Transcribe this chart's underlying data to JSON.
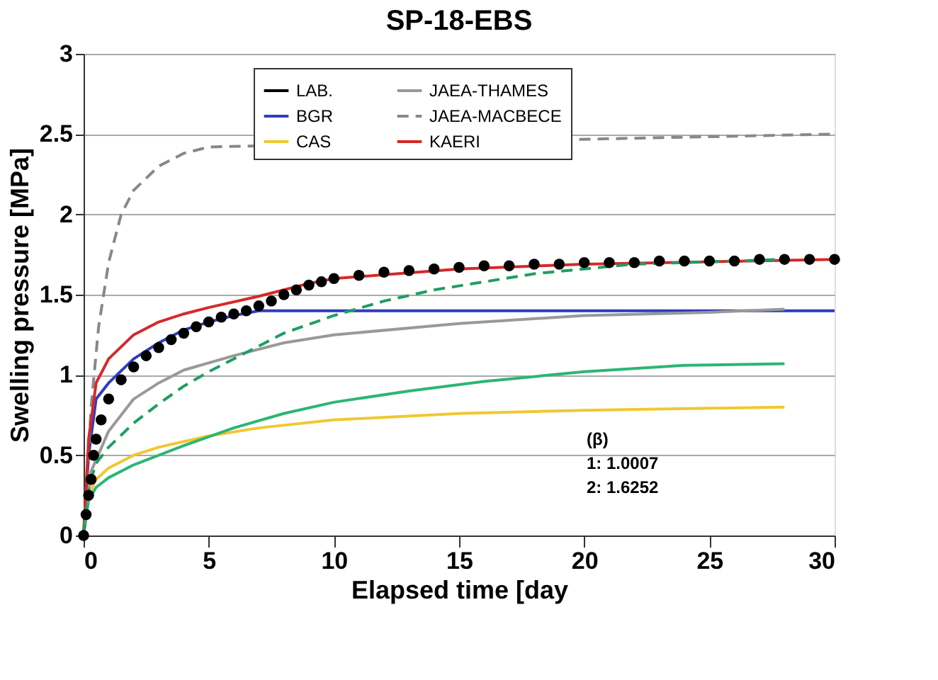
{
  "chart_data": {
    "type": "line",
    "title": "SP-18-EBS",
    "xlabel": "Elapsed time [day",
    "ylabel": "Swelling pressure [MPa]",
    "xlim": [
      0,
      30
    ],
    "xticks": [
      0,
      5,
      10,
      15,
      20,
      25,
      30
    ],
    "ylim": [
      0,
      3
    ],
    "yticks": [
      0,
      0.5,
      1,
      1.5,
      2,
      2.5,
      3
    ],
    "grid": "y",
    "legend": "top",
    "annotations": [
      "(β)",
      "1: 1.0007",
      "2: 1.6252"
    ],
    "series": [
      {
        "name": "LAB.",
        "type": "scatter",
        "marker": "circle",
        "color": "#000000",
        "x": [
          0,
          0.1,
          0.2,
          0.3,
          0.4,
          0.5,
          0.7,
          1,
          1.5,
          2,
          2.5,
          3,
          3.5,
          4,
          4.5,
          5,
          5.5,
          6,
          6.5,
          7,
          7.5,
          8,
          8.5,
          9,
          9.5,
          10,
          11,
          12,
          13,
          14,
          15,
          16,
          17,
          18,
          19,
          20,
          21,
          22,
          23,
          24,
          25,
          26,
          27,
          28,
          29,
          30
        ],
        "values": [
          0,
          0.13,
          0.25,
          0.35,
          0.5,
          0.6,
          0.72,
          0.85,
          0.97,
          1.05,
          1.12,
          1.17,
          1.22,
          1.26,
          1.3,
          1.33,
          1.36,
          1.38,
          1.4,
          1.43,
          1.46,
          1.5,
          1.53,
          1.56,
          1.58,
          1.6,
          1.62,
          1.64,
          1.65,
          1.66,
          1.67,
          1.68,
          1.68,
          1.69,
          1.69,
          1.7,
          1.7,
          1.7,
          1.71,
          1.71,
          1.71,
          1.71,
          1.72,
          1.72,
          1.72,
          1.72
        ]
      },
      {
        "name": "BGR",
        "color": "#2e3dbf",
        "line_style": "solid",
        "x": [
          0,
          0.2,
          0.5,
          1,
          2,
          3,
          4,
          5,
          6,
          7,
          30
        ],
        "values": [
          0,
          0.5,
          0.85,
          0.95,
          1.1,
          1.2,
          1.28,
          1.33,
          1.37,
          1.4,
          1.4
        ]
      },
      {
        "name": "CAS",
        "color": "#f0c830",
        "line_style": "solid",
        "x": [
          0,
          0.2,
          0.5,
          1,
          2,
          3,
          5,
          7,
          10,
          15,
          20,
          28
        ],
        "values": [
          0,
          0.25,
          0.35,
          0.42,
          0.5,
          0.55,
          0.62,
          0.67,
          0.72,
          0.76,
          0.78,
          0.8
        ]
      },
      {
        "name": "JAEA-THAMES",
        "color": "#999999",
        "line_style": "solid",
        "x": [
          0,
          0.3,
          1,
          2,
          3,
          4,
          6,
          8,
          10,
          15,
          20,
          25,
          28
        ],
        "values": [
          0,
          0.4,
          0.65,
          0.85,
          0.95,
          1.03,
          1.12,
          1.2,
          1.25,
          1.32,
          1.37,
          1.39,
          1.41
        ]
      },
      {
        "name": "JAEA-MACBECE",
        "color": "#888888",
        "line_style": "dashed",
        "x": [
          0,
          0.3,
          0.6,
          1,
          1.5,
          2,
          3,
          4,
          5,
          30
        ],
        "values": [
          0,
          0.8,
          1.3,
          1.7,
          2.0,
          2.15,
          2.3,
          2.38,
          2.42,
          2.5
        ]
      },
      {
        "name": "KAERI",
        "color": "#d62828",
        "line_style": "solid",
        "x": [
          0,
          0.2,
          0.5,
          1,
          2,
          3,
          4,
          5,
          7,
          9,
          10,
          15,
          20,
          30
        ],
        "values": [
          0,
          0.6,
          0.95,
          1.1,
          1.25,
          1.33,
          1.38,
          1.42,
          1.49,
          1.57,
          1.6,
          1.66,
          1.69,
          1.72
        ]
      },
      {
        "color": "#2bb673",
        "line_style": "solid",
        "x": [
          0,
          0.2,
          0.5,
          1,
          2,
          4,
          6,
          8,
          10,
          13,
          16,
          20,
          24,
          28
        ],
        "values": [
          0,
          0.22,
          0.3,
          0.36,
          0.44,
          0.56,
          0.67,
          0.76,
          0.83,
          0.9,
          0.96,
          1.02,
          1.06,
          1.07
        ]
      },
      {
        "color": "#1f9e62",
        "line_style": "dashed",
        "x": [
          0,
          0.2,
          0.5,
          1,
          2,
          3,
          4,
          5,
          6,
          7,
          8,
          10,
          12,
          14,
          16,
          18,
          20,
          22,
          24,
          26,
          28
        ],
        "values": [
          0,
          0.3,
          0.45,
          0.55,
          0.7,
          0.82,
          0.93,
          1.02,
          1.1,
          1.18,
          1.26,
          1.37,
          1.46,
          1.53,
          1.58,
          1.63,
          1.66,
          1.69,
          1.7,
          1.71,
          1.72
        ]
      }
    ]
  }
}
